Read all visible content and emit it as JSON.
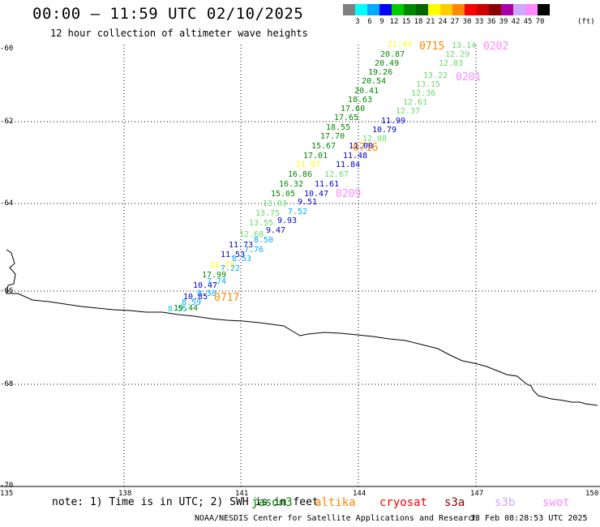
{
  "title": "00:00 – 11:59 UTC 02/10/2025",
  "subtitle": "12 hour collection of altimeter wave heights",
  "legend": {
    "colors": [
      "#808080",
      "#00ffff",
      "#00aaff",
      "#0000ff",
      "#00cc00",
      "#008800",
      "#006600",
      "#ffff00",
      "#ffcc00",
      "#ff8800",
      "#ff0000",
      "#cc0000",
      "#880000",
      "#aa00aa",
      "#ccaaff",
      "#ff88ff",
      "#000000"
    ],
    "labels": [
      "3",
      "6",
      "9",
      "12",
      "15",
      "18",
      "21",
      "24",
      "27",
      "30",
      "33",
      "36",
      "39",
      "42",
      "45",
      "70"
    ],
    "unit": "(ft)"
  },
  "map": {
    "lat_labels": [
      "-60",
      "-62",
      "-64",
      "-66",
      "-68",
      "-70"
    ],
    "lon_labels": [
      "135",
      "138",
      "141",
      "144",
      "147",
      "150"
    ]
  },
  "observations": [
    {
      "text": "21.47",
      "color": "#ffff00"
    },
    {
      "text": "0715",
      "color": "#ff8800"
    },
    {
      "text": "13.14",
      "color": "#66dd66"
    },
    {
      "text": "0202",
      "color": "#ff88ff"
    },
    {
      "text": "20.87",
      "color": "#008800"
    },
    {
      "text": "12.29",
      "color": "#66dd66"
    },
    {
      "text": "20.49",
      "color": "#008800"
    },
    {
      "text": "12.83",
      "color": "#66dd66"
    },
    {
      "text": "19.26",
      "color": "#008800"
    },
    {
      "text": "13.22",
      "color": "#66dd66"
    },
    {
      "text": "0201",
      "color": "#ff88ff"
    },
    {
      "text": "20.54",
      "color": "#008800"
    },
    {
      "text": "13.15",
      "color": "#66dd66"
    },
    {
      "text": "20.41",
      "color": "#008800"
    },
    {
      "text": "12.36",
      "color": "#66dd66"
    },
    {
      "text": "18.63",
      "color": "#008800"
    },
    {
      "text": "12.61",
      "color": "#66dd66"
    },
    {
      "text": "17.60",
      "color": "#008800"
    },
    {
      "text": "12.37",
      "color": "#66dd66"
    },
    {
      "text": "17.65",
      "color": "#008800"
    },
    {
      "text": "11.99",
      "color": "#0000cc"
    },
    {
      "text": "18.55",
      "color": "#008800"
    },
    {
      "text": "10.79",
      "color": "#0000cc"
    },
    {
      "text": "17.70",
      "color": "#008800"
    },
    {
      "text": "12.08",
      "color": "#66dd66"
    },
    {
      "text": "15.67",
      "color": "#008800"
    },
    {
      "text": "0716",
      "color": "#ff8800"
    },
    {
      "text": "11.00",
      "color": "#0000cc"
    },
    {
      "text": "17.01",
      "color": "#008800"
    },
    {
      "text": "11.48",
      "color": "#0000cc"
    },
    {
      "text": "21.97",
      "color": "#ffff00"
    },
    {
      "text": "11.84",
      "color": "#0000cc"
    },
    {
      "text": "16.86",
      "color": "#008800"
    },
    {
      "text": "12.67",
      "color": "#66dd66"
    },
    {
      "text": "16.32",
      "color": "#008800"
    },
    {
      "text": "11.61",
      "color": "#0000cc"
    },
    {
      "text": "15.05",
      "color": "#008800"
    },
    {
      "text": "10.47",
      "color": "#0000cc"
    },
    {
      "text": "0209",
      "color": "#ff88ff"
    },
    {
      "text": "13.03",
      "color": "#66dd66"
    },
    {
      "text": "9.51",
      "color": "#0000cc"
    },
    {
      "text": "13.75",
      "color": "#66dd66"
    },
    {
      "text": "7.52",
      "color": "#00aaff"
    },
    {
      "text": "13.55",
      "color": "#66dd66"
    },
    {
      "text": "9.93",
      "color": "#0000cc"
    },
    {
      "text": "9.47",
      "color": "#0000cc"
    },
    {
      "text": "12.68",
      "color": "#66dd66"
    },
    {
      "text": "8.50",
      "color": "#00aaff"
    },
    {
      "text": "11.73",
      "color": "#0000cc"
    },
    {
      "text": "7.76",
      "color": "#00aaff"
    },
    {
      "text": "11.53",
      "color": "#0000cc"
    },
    {
      "text": "8.53",
      "color": "#00aaff"
    },
    {
      "text": "22.79",
      "color": "#ffff00"
    },
    {
      "text": "7.22",
      "color": "#00aaff"
    },
    {
      "text": "17.99",
      "color": "#008800"
    },
    {
      "text": "7.74",
      "color": "#00aaff"
    },
    {
      "text": "10.47",
      "color": "#0000cc"
    },
    {
      "text": "8.58",
      "color": "#00aaff"
    },
    {
      "text": "10.85",
      "color": "#0000cc"
    },
    {
      "text": "0717",
      "color": "#ff8800"
    },
    {
      "text": "8.59",
      "color": "#00aaff"
    },
    {
      "text": "8.55",
      "color": "#00cccc"
    },
    {
      "text": "19.44",
      "color": "#008800"
    }
  ],
  "note": "note: 1) Time is in UTC; 2) SWH is in feet",
  "satellites": [
    {
      "name": "jason3",
      "color": "#008800"
    },
    {
      "name": "altika",
      "color": "#ff8800"
    },
    {
      "name": "cryosat",
      "color": "#ff0000"
    },
    {
      "name": "s3a",
      "color": "#880000"
    },
    {
      "name": "s3b",
      "color": "#ccaaff"
    },
    {
      "name": "swot",
      "color": "#ff88ff"
    }
  ],
  "credit": "NOAA/NESDIS Center for Satellite Applications and Research",
  "timestamp": "13 Feb 08:28:53 UTC 2025"
}
